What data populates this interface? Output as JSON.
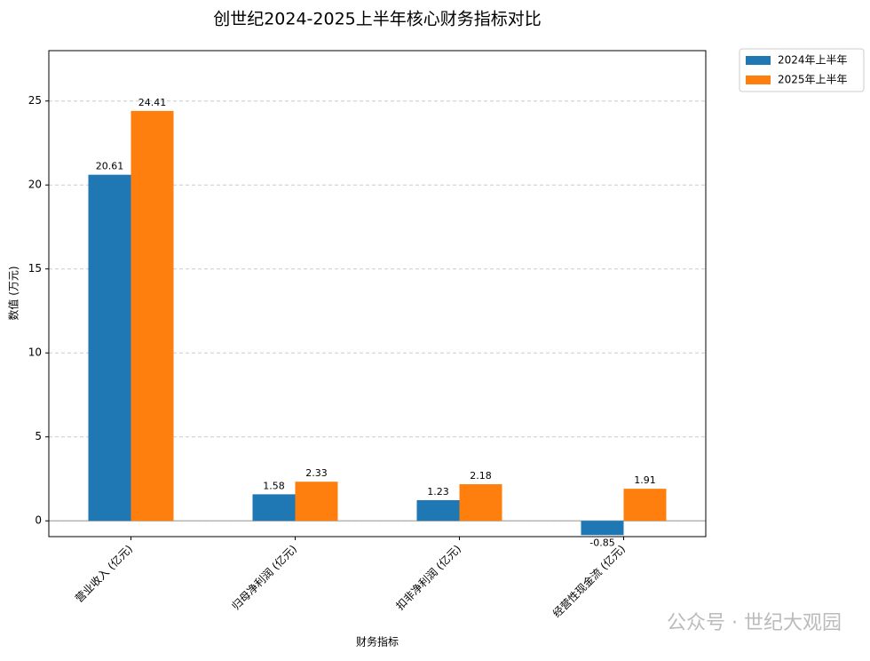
{
  "chart_data": {
    "type": "bar",
    "title": "创世纪2024-2025上半年核心财务指标对比",
    "xlabel": "财务指标",
    "ylabel": "数值 (万元)",
    "categories": [
      "营业收入 (亿元)",
      "归母净利润 (亿元)",
      "扣非净利润 (亿元)",
      "经营性现金流 (亿元)"
    ],
    "series": [
      {
        "name": "2024年上半年",
        "color": "#1f77b4",
        "values": [
          20.61,
          1.58,
          1.23,
          -0.85
        ]
      },
      {
        "name": "2025年上半年",
        "color": "#ff7f0e",
        "values": [
          24.41,
          2.33,
          2.18,
          1.91
        ]
      }
    ],
    "ylim": [
      -0.94,
      28
    ],
    "yticks": [
      0,
      5,
      10,
      15,
      20,
      25
    ],
    "grid": true,
    "legend": "outside upper right",
    "watermark": "公众号 · 世纪大观园"
  }
}
